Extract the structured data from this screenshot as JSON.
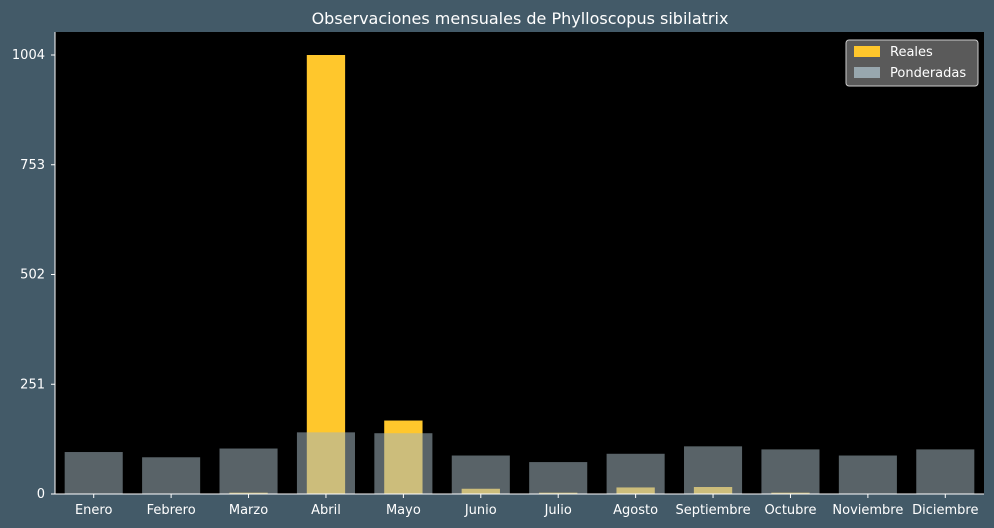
{
  "chart_data": {
    "type": "bar",
    "title": "Observaciones mensuales de Phylloscopus sibilatrix",
    "xlabel": "",
    "ylabel": "",
    "ylim": [
      0,
      1004
    ],
    "yticks": [
      0,
      251,
      502,
      753,
      1004
    ],
    "grid": false,
    "legend_position": "top-right",
    "categories": [
      "Enero",
      "Febrero",
      "Marzo",
      "Abril",
      "Mayo",
      "Junio",
      "Julio",
      "Agosto",
      "Septiembre",
      "Octubre",
      "Noviembre",
      "Diciembre"
    ],
    "series": [
      {
        "name": "Reales",
        "color": "#ffc72c",
        "values": [
          0,
          0,
          3,
          1004,
          168,
          12,
          3,
          15,
          16,
          3,
          0,
          0
        ]
      },
      {
        "name": "Ponderadas",
        "color": "#a3b5bd",
        "opacity": 0.55,
        "values": [
          96,
          84,
          104,
          141,
          139,
          88,
          73,
          92,
          109,
          102,
          88,
          102
        ]
      }
    ]
  },
  "colors": {
    "background": "#435a68",
    "plot_background": "#000000",
    "text": "#ffffff",
    "legend_background": "#5a5a5a"
  }
}
